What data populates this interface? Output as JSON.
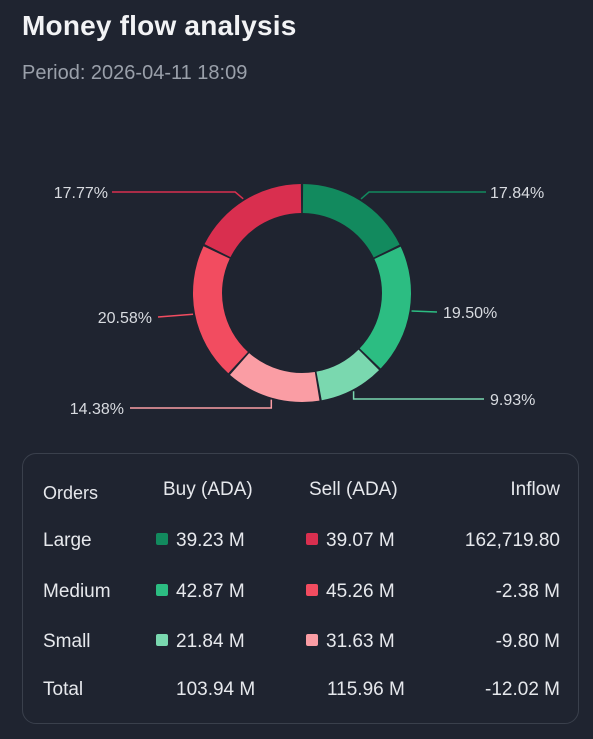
{
  "header": {
    "title": "Money flow analysis",
    "period": "Period: 2026-04-11 18:09"
  },
  "chart_data": {
    "type": "pie",
    "variant": "donut",
    "slices": [
      {
        "label": "17.84%",
        "value": 17.84,
        "color": "#128a5e",
        "side": "buy",
        "size": "Large"
      },
      {
        "label": "19.50%",
        "value": 19.5,
        "color": "#2cbd82",
        "side": "buy",
        "size": "Medium"
      },
      {
        "label": "9.93%",
        "value": 9.93,
        "color": "#7ad8af",
        "side": "buy",
        "size": "Small"
      },
      {
        "label": "14.38%",
        "value": 14.38,
        "color": "#fa9da4",
        "side": "sell",
        "size": "Small"
      },
      {
        "label": "20.58%",
        "value": 20.58,
        "color": "#f24c60",
        "side": "sell",
        "size": "Medium"
      },
      {
        "label": "17.77%",
        "value": 17.77,
        "color": "#d92f4f",
        "side": "sell",
        "size": "Large"
      }
    ]
  },
  "table": {
    "headers": {
      "orders": "Orders",
      "buy": "Buy (ADA)",
      "sell": "Sell (ADA)",
      "inflow": "Inflow"
    },
    "rows": [
      {
        "label": "Large",
        "buy": "39.23 M",
        "sell": "39.07 M",
        "inflow": "162,719.80",
        "buy_color": "#128a5e",
        "sell_color": "#d92f4f"
      },
      {
        "label": "Medium",
        "buy": "42.87 M",
        "sell": "45.26 M",
        "inflow": "-2.38 M",
        "buy_color": "#2cbd82",
        "sell_color": "#f24c60"
      },
      {
        "label": "Small",
        "buy": "21.84 M",
        "sell": "31.63 M",
        "inflow": "-9.80 M",
        "buy_color": "#7ad8af",
        "sell_color": "#fa9da4"
      }
    ],
    "total": {
      "label": "Total",
      "buy": "103.94 M",
      "sell": "115.96 M",
      "inflow": "-12.02 M"
    }
  }
}
